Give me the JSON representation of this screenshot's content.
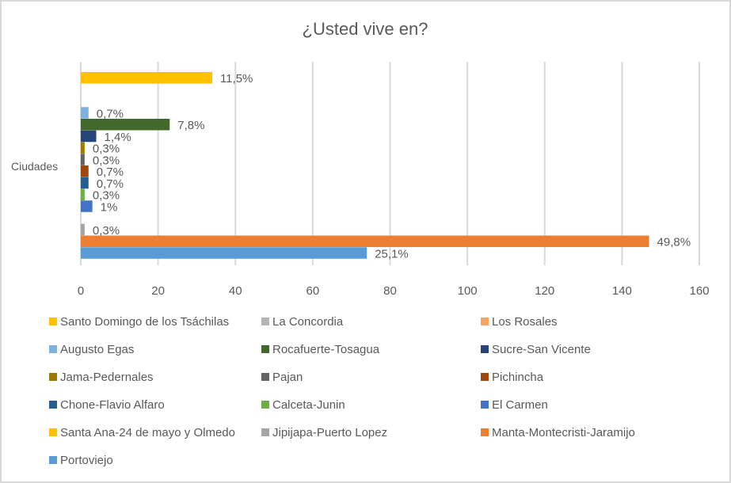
{
  "chart_data": {
    "type": "bar",
    "orientation": "horizontal",
    "title": "¿Usted vive en?",
    "categories": [
      "Ciudades"
    ],
    "xlim": [
      0,
      160
    ],
    "xticks": [
      0,
      20,
      40,
      60,
      80,
      100,
      120,
      140,
      160
    ],
    "grid": true,
    "legend_position": "bottom",
    "series": [
      {
        "name": "Santo Domingo de los Tsáchilas",
        "value": 34,
        "label": "11,5%",
        "color": "#FFC000"
      },
      {
        "name": "La Concordia",
        "value": 0,
        "label": "",
        "color": "#B4B4B4"
      },
      {
        "name": "Los Rosales",
        "value": 0,
        "label": "",
        "color": "#F4A460"
      },
      {
        "name": "Augusto Egas",
        "value": 2,
        "label": "0,7%",
        "color": "#7EB0E0"
      },
      {
        "name": "Rocafuerte-Tosagua",
        "value": 23,
        "label": "7,8%",
        "color": "#43682B"
      },
      {
        "name": "Sucre-San Vicente",
        "value": 4,
        "label": "1,4%",
        "color": "#264478"
      },
      {
        "name": "Jama-Pedernales",
        "value": 1,
        "label": "0,3%",
        "color": "#9E7B00"
      },
      {
        "name": "Pajan",
        "value": 1,
        "label": "0,3%",
        "color": "#636363"
      },
      {
        "name": "Pichincha",
        "value": 2,
        "label": "0,7%",
        "color": "#9E480E"
      },
      {
        "name": "Chone-Flavio Alfaro",
        "value": 2,
        "label": "0,7%",
        "color": "#255E91"
      },
      {
        "name": "Calceta-Junin",
        "value": 1,
        "label": "0,3%",
        "color": "#70AD47"
      },
      {
        "name": "El Carmen",
        "value": 3,
        "label": "1%",
        "color": "#4472C4"
      },
      {
        "name": "Santa Ana-24 de mayo y Olmedo",
        "value": 0,
        "label": "",
        "color": "#FFC000"
      },
      {
        "name": "Jipijapa-Puerto Lopez",
        "value": 1,
        "label": "0,3%",
        "color": "#A5A5A5"
      },
      {
        "name": "Manta-Montecristi-Jaramijo",
        "value": 147,
        "label": "49,8%",
        "color": "#ED7D31"
      },
      {
        "name": "Portoviejo",
        "value": 74,
        "label": "25,1%",
        "color": "#5B9BD5"
      }
    ]
  }
}
